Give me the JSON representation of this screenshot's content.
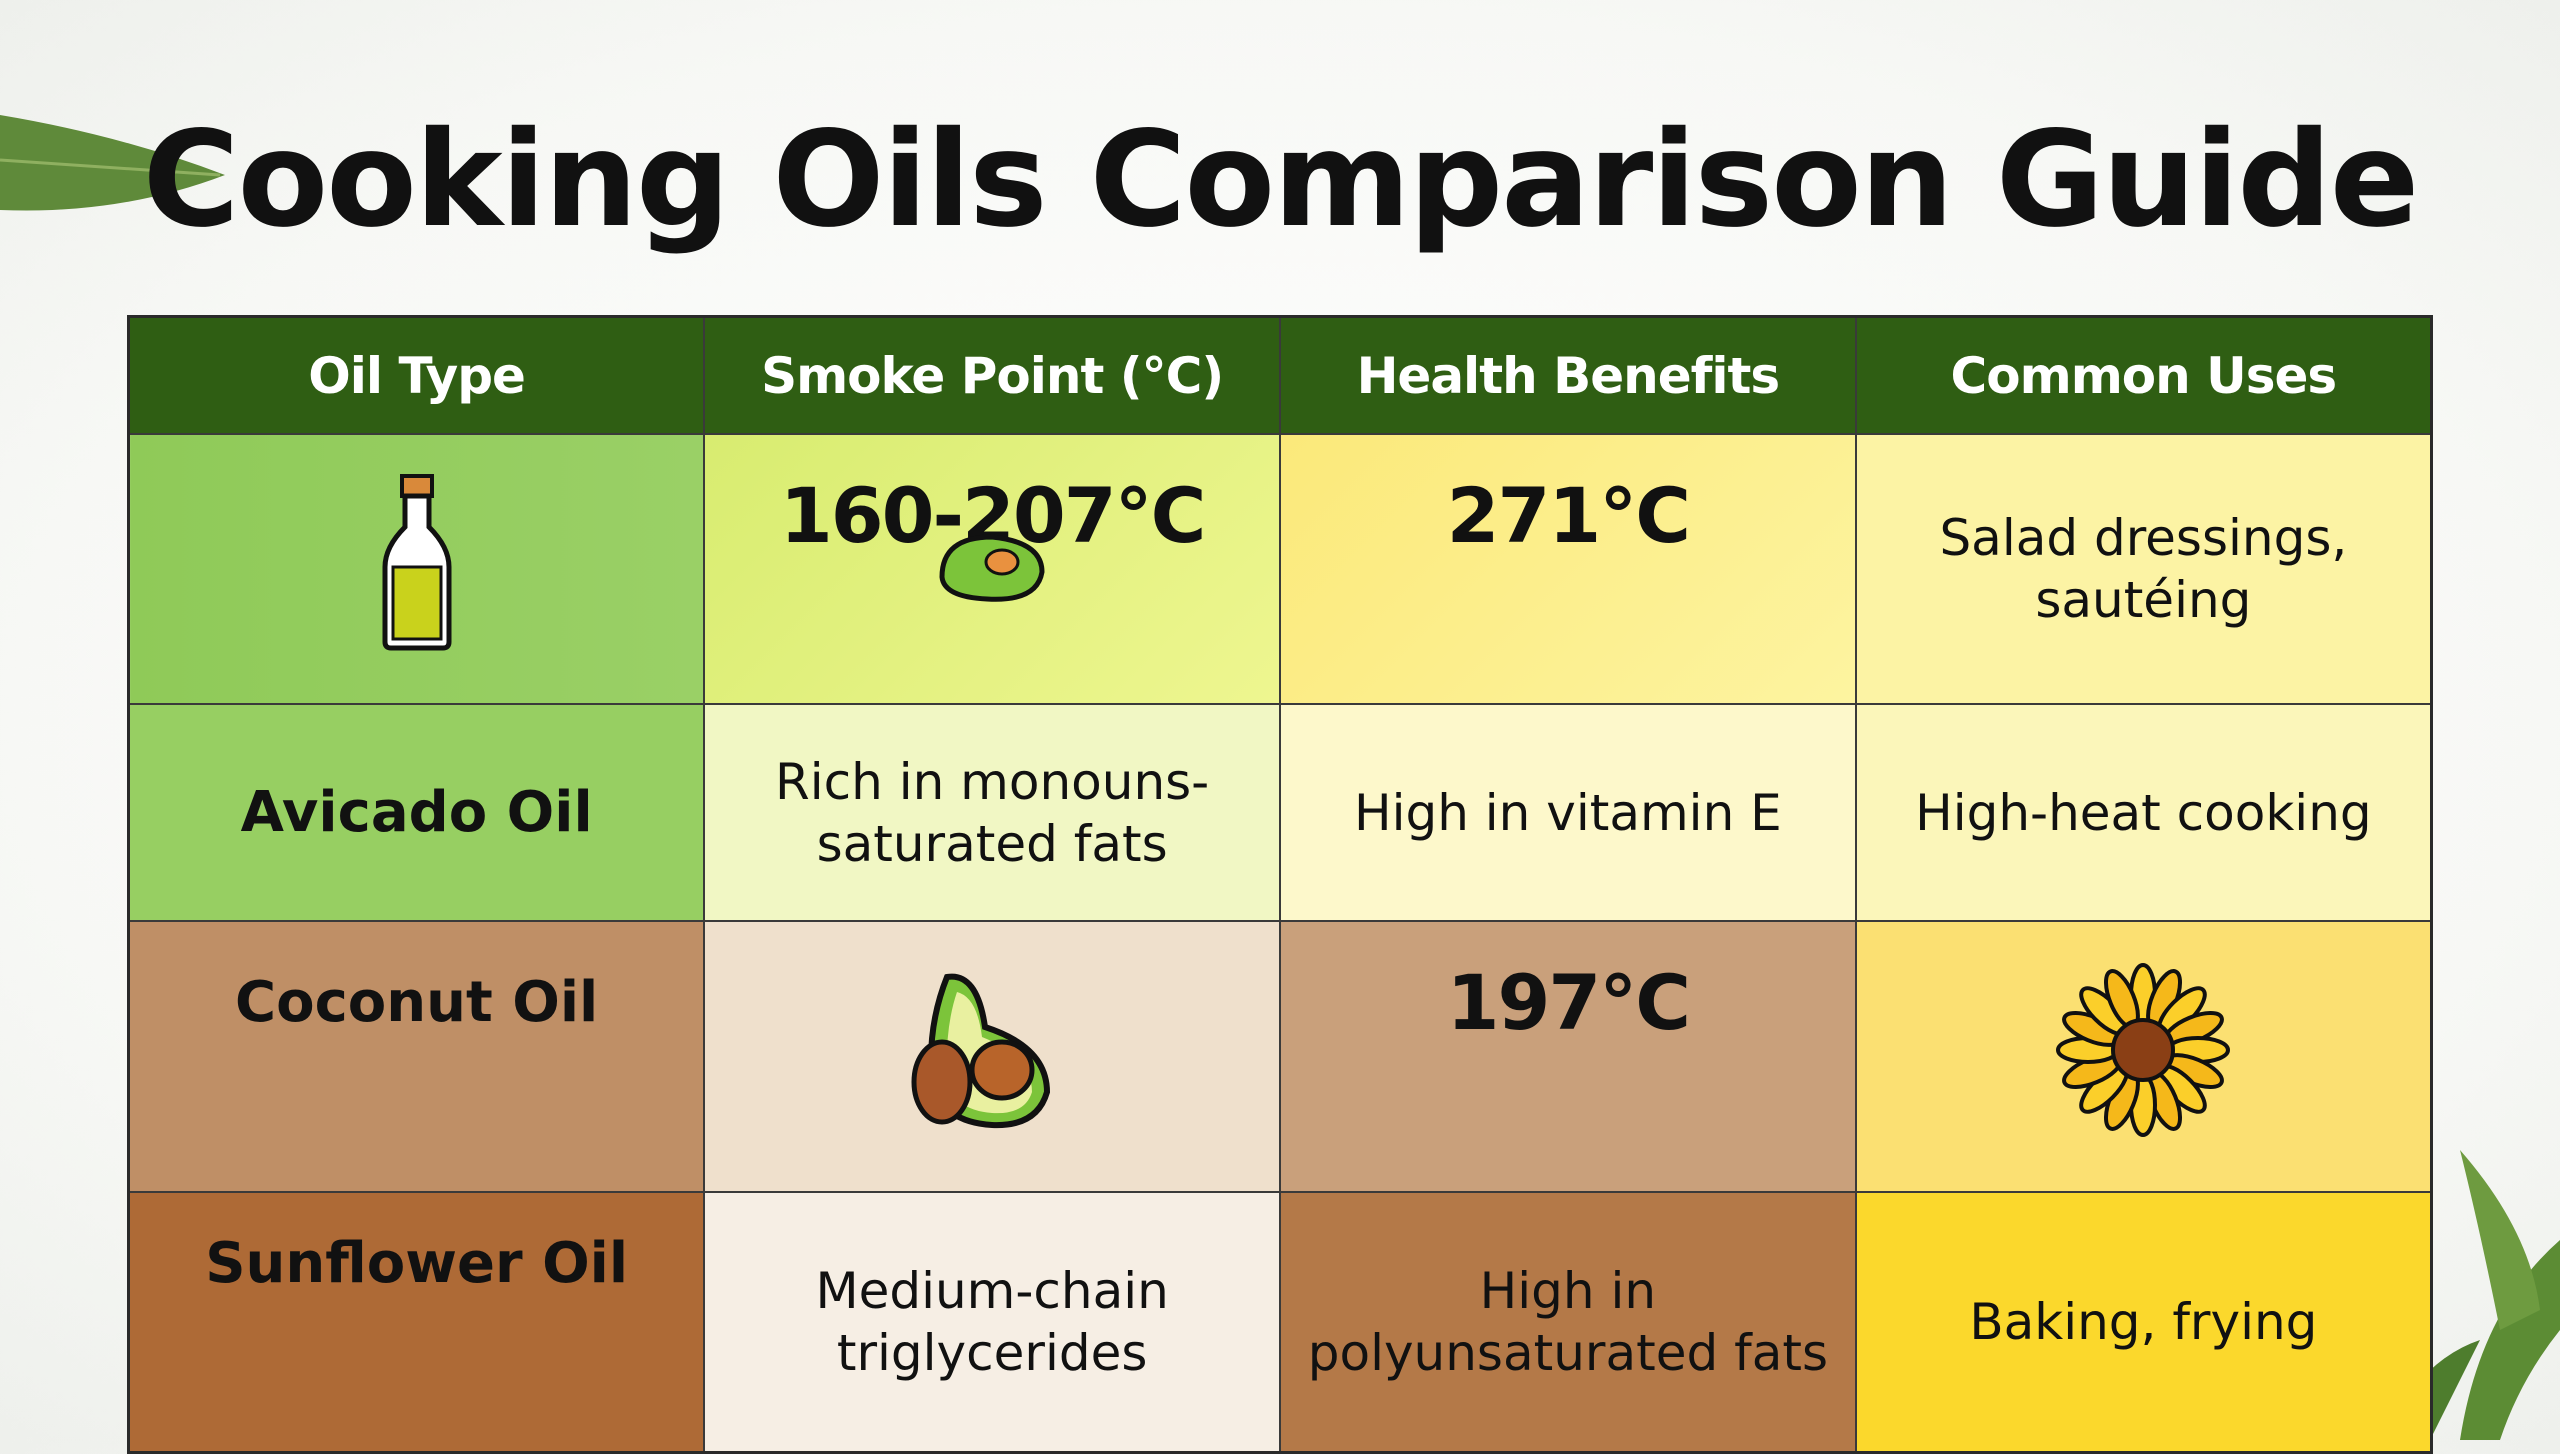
{
  "title": "Cooking Oils Comparison Guide",
  "header": [
    "Oil Type",
    "Smoke Point (°C)",
    "Health Benefits",
    "Common Uses"
  ],
  "rows": [
    {
      "oil_type": "",
      "oil_icon": "oil-bottle-icon",
      "smoke_point": "160-207°C",
      "smoke_icon": "avocado-icon",
      "health": "271°C",
      "uses": "Salad dressings, sautéing"
    },
    {
      "oil_type": "Avicado Oil",
      "smoke_point": "Rich in monouns-saturated fats",
      "health": "High in vitamin E",
      "uses": "High-heat cooking"
    },
    {
      "oil_type": "Coconut Oil",
      "smoke_point": "",
      "smoke_icon": "avocado-half-icon",
      "health": "197°C",
      "uses": "",
      "uses_icon": "sunflower-icon"
    },
    {
      "oil_type": "Sunflower Oil",
      "smoke_point": "Medium-chain triglycerides",
      "health": "High in polyunsaturated fats",
      "uses": "Baking, frying"
    }
  ],
  "colors": {
    "header": "#2f5e13",
    "row1": [
      "#8fca58",
      "#e4f27e",
      "#fbee88",
      "#fcf3a4"
    ],
    "row2": [
      "#97cf62",
      "#f1f7c4",
      "#fdf8cb",
      "#fbf6ba"
    ],
    "row3": [
      "#bf8f66",
      "#efe0cc",
      "#c9a07b",
      "#fbe072"
    ],
    "row4": [
      "#ae6a36",
      "#f6eee4",
      "#b47948",
      "#fbd82c"
    ]
  }
}
